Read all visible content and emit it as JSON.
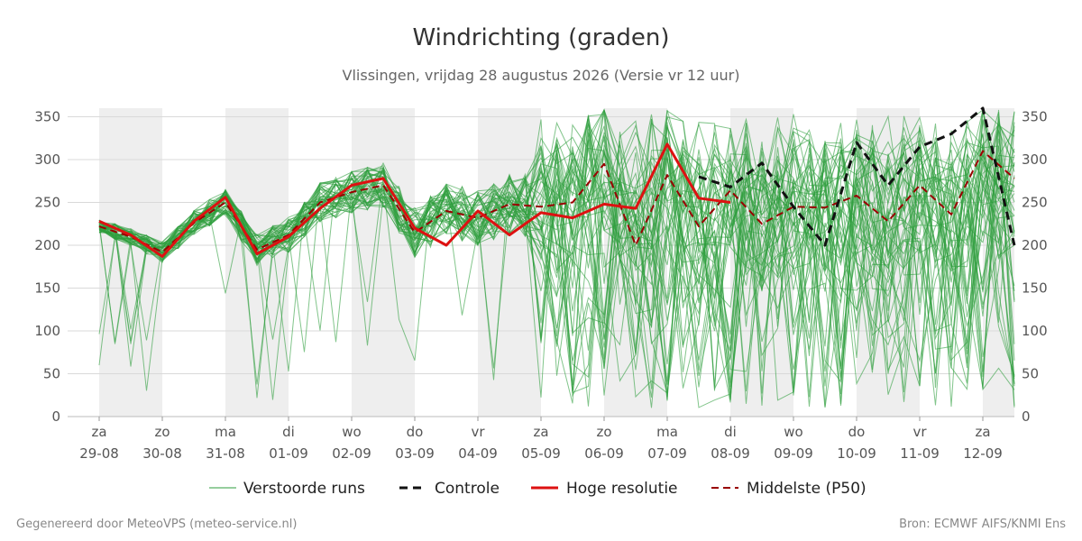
{
  "chart_data": {
    "type": "line",
    "title": "Windrichting (graden)",
    "subtitle": "Vlissingen, vrijdag 28 augustus 2026 (Versie vr 12 uur)",
    "xlabel": "",
    "ylabel": "",
    "ylim": [
      0,
      360
    ],
    "yticks": [
      0,
      50,
      100,
      150,
      200,
      250,
      300,
      350
    ],
    "x_start": "2026-08-28T12:00",
    "x_end": "2026-09-12T12:00",
    "x_ticks": [
      {
        "date": "2026-08-29",
        "day": "za",
        "label": "29-08"
      },
      {
        "date": "2026-08-30",
        "day": "zo",
        "label": "30-08"
      },
      {
        "date": "2026-08-31",
        "day": "ma",
        "label": "31-08"
      },
      {
        "date": "2026-09-01",
        "day": "di",
        "label": "01-09"
      },
      {
        "date": "2026-09-02",
        "day": "wo",
        "label": "02-09"
      },
      {
        "date": "2026-09-03",
        "day": "do",
        "label": "03-09"
      },
      {
        "date": "2026-09-04",
        "day": "vr",
        "label": "04-09"
      },
      {
        "date": "2026-09-05",
        "day": "za",
        "label": "05-09"
      },
      {
        "date": "2026-09-06",
        "day": "zo",
        "label": "06-09"
      },
      {
        "date": "2026-09-07",
        "day": "ma",
        "label": "07-09"
      },
      {
        "date": "2026-09-08",
        "day": "di",
        "label": "08-09"
      },
      {
        "date": "2026-09-09",
        "day": "wo",
        "label": "09-09"
      },
      {
        "date": "2026-09-10",
        "day": "do",
        "label": "10-09"
      },
      {
        "date": "2026-09-11",
        "day": "vr",
        "label": "11-09"
      },
      {
        "date": "2026-09-12",
        "day": "za",
        "label": "12-09"
      }
    ],
    "shaded_periods": [
      [
        "2026-08-29",
        "2026-08-30"
      ],
      [
        "2026-08-31",
        "2026-09-01"
      ],
      [
        "2026-09-02",
        "2026-09-03"
      ],
      [
        "2026-09-04",
        "2026-09-05"
      ],
      [
        "2026-09-06",
        "2026-09-07"
      ],
      [
        "2026-09-08",
        "2026-09-09"
      ],
      [
        "2026-09-10",
        "2026-09-11"
      ],
      [
        "2026-09-12",
        "2026-09-12T12:00"
      ]
    ],
    "grid": true,
    "legend_position": "bottom",
    "series": [
      {
        "name": "Hoge resolutie",
        "color": "#dd1111",
        "style": "solid",
        "x": [
          "2026-08-29T00:00",
          "2026-08-29T12:00",
          "2026-08-30T00:00",
          "2026-08-30T12:00",
          "2026-08-31T00:00",
          "2026-08-31T12:00",
          "2026-09-01T00:00",
          "2026-09-01T12:00",
          "2026-09-02T00:00",
          "2026-09-02T12:00",
          "2026-09-03T00:00",
          "2026-09-03T12:00",
          "2026-09-04T00:00",
          "2026-09-04T12:00",
          "2026-09-05T00:00",
          "2026-09-05T12:00",
          "2026-09-06T00:00",
          "2026-09-06T12:00",
          "2026-09-07T00:00",
          "2026-09-07T12:00",
          "2026-09-08T00:00"
        ],
        "y": [
          228,
          212,
          187,
          228,
          256,
          190,
          210,
          243,
          270,
          278,
          220,
          200,
          240,
          212,
          238,
          232,
          248,
          243,
          318,
          255,
          250
        ]
      },
      {
        "name": "Controle",
        "color": "#111111",
        "style": "dashed",
        "x": [
          "2026-09-07T12:00",
          "2026-09-08T00:00",
          "2026-09-08T12:00",
          "2026-09-09T00:00",
          "2026-09-09T12:00",
          "2026-09-10T00:00",
          "2026-09-10T12:00",
          "2026-09-11T00:00",
          "2026-09-11T12:00",
          "2026-09-12T00:00",
          "2026-09-12T12:00"
        ],
        "y": [
          280,
          268,
          296,
          245,
          200,
          320,
          270,
          315,
          330,
          360,
          200
        ]
      },
      {
        "name": "Middelste (P50)",
        "color": "#990000",
        "style": "dashed",
        "x": [
          "2026-08-29T00:00",
          "2026-08-29T12:00",
          "2026-08-30T00:00",
          "2026-08-30T12:00",
          "2026-08-31T00:00",
          "2026-08-31T12:00",
          "2026-09-01T00:00",
          "2026-09-01T12:00",
          "2026-09-02T00:00",
          "2026-09-02T12:00",
          "2026-09-03T00:00",
          "2026-09-03T12:00",
          "2026-09-04T00:00",
          "2026-09-04T12:00",
          "2026-09-05T00:00",
          "2026-09-05T12:00",
          "2026-09-06T00:00",
          "2026-09-06T12:00",
          "2026-09-07T00:00",
          "2026-09-07T12:00",
          "2026-09-08T00:00",
          "2026-09-08T12:00",
          "2026-09-09T00:00",
          "2026-09-09T12:00",
          "2026-09-10T00:00",
          "2026-09-10T12:00",
          "2026-09-11T00:00",
          "2026-09-11T12:00",
          "2026-09-12T00:00",
          "2026-09-12T12:00"
        ],
        "y": [
          222,
          210,
          192,
          226,
          250,
          195,
          212,
          250,
          262,
          270,
          215,
          240,
          232,
          248,
          245,
          250,
          295,
          200,
          282,
          222,
          264,
          225,
          245,
          244,
          258,
          228,
          270,
          236,
          310,
          278
        ]
      }
    ],
    "ensemble": {
      "name": "Verstoorde runs",
      "color": "#2e9e3e",
      "members": 50,
      "style": "thin"
    }
  },
  "legend": {
    "items": [
      {
        "label": "Verstoorde runs",
        "color": "#2e9e3e",
        "style": "thin"
      },
      {
        "label": "Controle",
        "color": "#111111",
        "style": "dashed"
      },
      {
        "label": "Hoge resolutie",
        "color": "#dd1111",
        "style": "solid"
      },
      {
        "label": "Middelste (P50)",
        "color": "#990000",
        "style": "dashed"
      }
    ]
  },
  "footer": {
    "left": "Gegenereerd door MeteoVPS (meteo-service.nl)",
    "right": "Bron: ECMWF AIFS/KNMI Ens"
  }
}
